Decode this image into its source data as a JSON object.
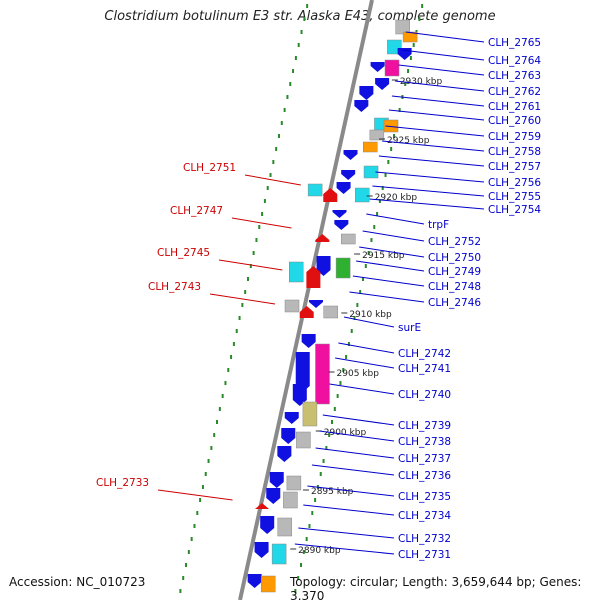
{
  "title": "Clostridium botulinum E3 str. Alaska E43, complete genome",
  "accession_label": "Accession: NC_010723",
  "topology_label": "Topology: circular; Length: 3,659,644 bp; Genes: 3,370",
  "colors": {
    "backbone": "#8a8a8a",
    "forward_gene": "#1010e0",
    "reverse_gene": "#e01010",
    "label_blue": "#0000cc",
    "label_red": "#cc0000",
    "tick_green": "#2a8a2a",
    "cyan": "#20d8e8",
    "magenta": "#f010a0",
    "olive": "#c8c070",
    "gray": "#b8b8b8",
    "orange": "#ff9900",
    "green": "#30b030"
  },
  "scale_ticks": [
    "2930 kbp",
    "2925 kbp",
    "2920 kbp",
    "2915 kbp",
    "2910 kbp",
    "2905 kbp",
    "2900 kbp",
    "2895 kbp",
    "2890 kbp"
  ],
  "forward_labels": [
    "CLH_2765",
    "CLH_2764",
    "CLH_2763",
    "CLH_2762",
    "CLH_2761",
    "CLH_2760",
    "CLH_2759",
    "CLH_2758",
    "CLH_2757",
    "CLH_2756",
    "CLH_2755",
    "CLH_2754",
    "trpF",
    "CLH_2752",
    "CLH_2750",
    "CLH_2749",
    "CLH_2748",
    "CLH_2746",
    "surE",
    "CLH_2742",
    "CLH_2741",
    "CLH_2740",
    "CLH_2739",
    "CLH_2738",
    "CLH_2737",
    "CLH_2736",
    "CLH_2735",
    "CLH_2734",
    "CLH_2732",
    "CLH_2731"
  ],
  "reverse_labels": [
    "CLH_2751",
    "CLH_2747",
    "CLH_2745",
    "CLH_2743",
    "CLH_2733"
  ]
}
